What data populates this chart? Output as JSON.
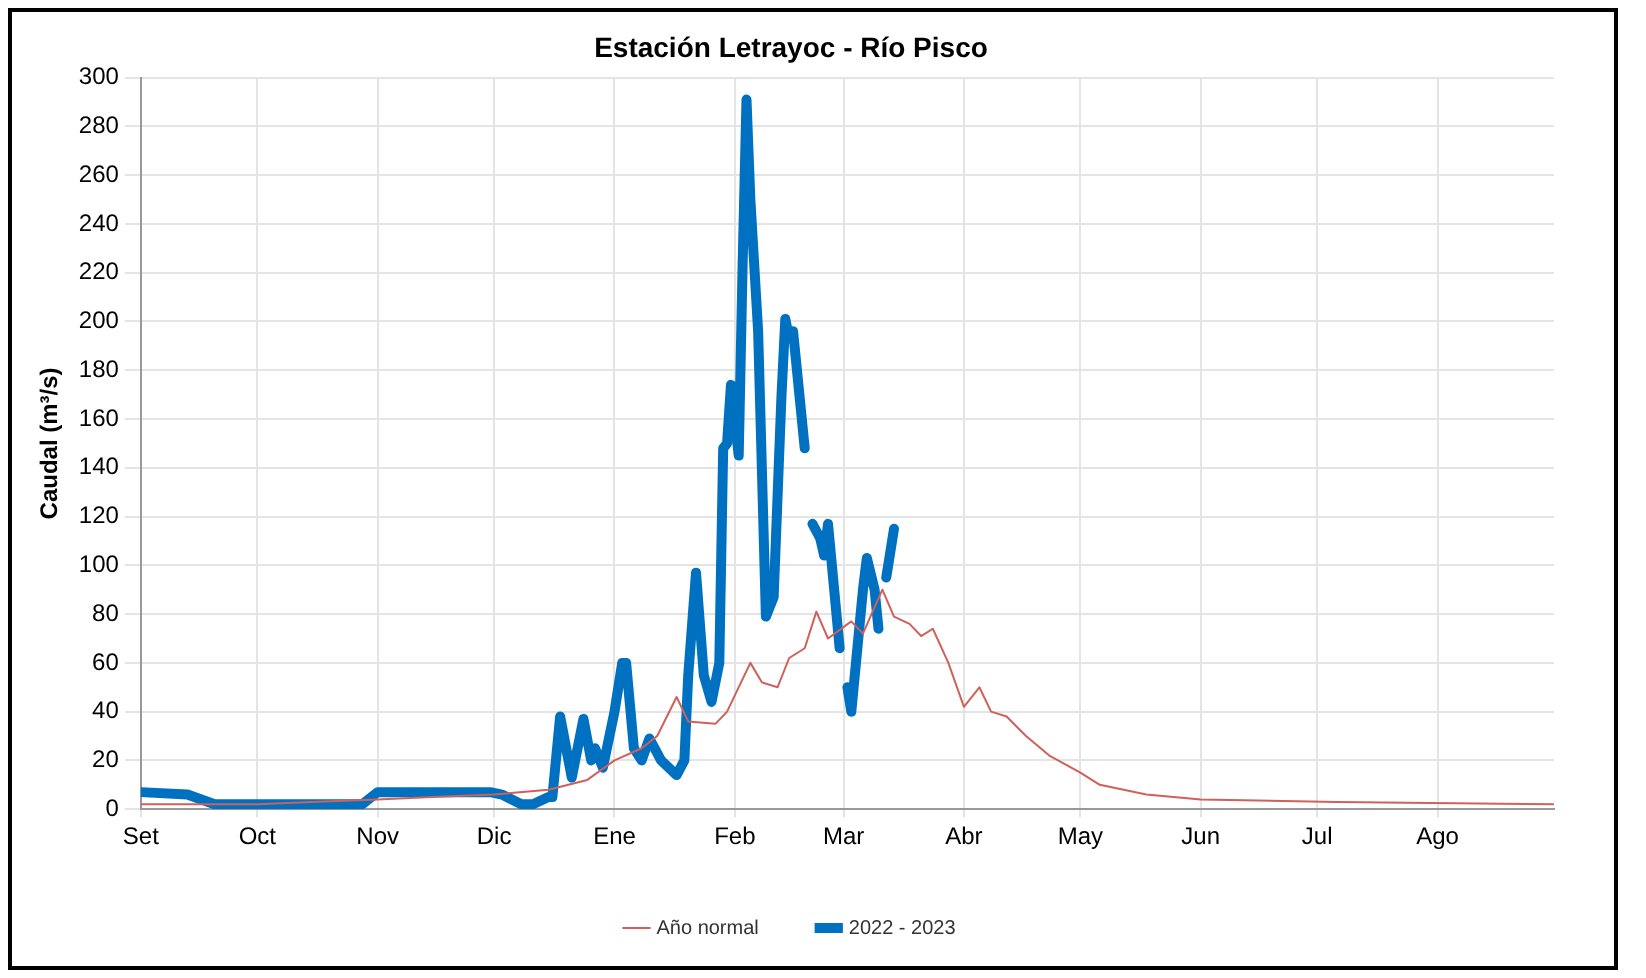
{
  "chart_data": {
    "type": "line",
    "title": "Estación Letrayoc - Río Pisco",
    "ylabel": "Caudal (m³/s)",
    "xlim": [
      "2022-09-01",
      "2023-08-31"
    ],
    "xticks": [
      {
        "value": "2022-09-01",
        "label": "Set"
      },
      {
        "value": "2022-10-01",
        "label": "Oct"
      },
      {
        "value": "2022-11-01",
        "label": "Nov"
      },
      {
        "value": "2022-12-01",
        "label": "Dic"
      },
      {
        "value": "2023-01-01",
        "label": "Ene"
      },
      {
        "value": "2023-02-01",
        "label": "Feb"
      },
      {
        "value": "2023-03-01",
        "label": "Mar"
      },
      {
        "value": "2023-04-01",
        "label": "Abr"
      },
      {
        "value": "2023-05-01",
        "label": "May"
      },
      {
        "value": "2023-06-01",
        "label": "Jun"
      },
      {
        "value": "2023-07-01",
        "label": "Jul"
      },
      {
        "value": "2023-08-01",
        "label": "Ago"
      }
    ],
    "ylim": [
      0,
      300
    ],
    "yticks": [
      0,
      20,
      40,
      60,
      80,
      100,
      120,
      140,
      160,
      180,
      200,
      220,
      240,
      260,
      280,
      300
    ],
    "grid": true,
    "legend": "bottom",
    "marker": "none",
    "line_style": "solid",
    "series": [
      {
        "name": "Año normal",
        "color": "#d0605a",
        "x": [
          "2022-09-01",
          "2022-09-15",
          "2022-10-01",
          "2022-10-15",
          "2022-11-01",
          "2022-11-15",
          "2022-12-01",
          "2022-12-15",
          "2022-12-25",
          "2023-01-01",
          "2023-01-08",
          "2023-01-12",
          "2023-01-17",
          "2023-01-20",
          "2023-01-27",
          "2023-01-30",
          "2023-02-05",
          "2023-02-08",
          "2023-02-12",
          "2023-02-15",
          "2023-02-19",
          "2023-02-22",
          "2023-02-25",
          "2023-03-03",
          "2023-03-06",
          "2023-03-11",
          "2023-03-14",
          "2023-03-18",
          "2023-03-21",
          "2023-03-24",
          "2023-03-28",
          "2023-04-01",
          "2023-04-05",
          "2023-04-08",
          "2023-04-12",
          "2023-04-17",
          "2023-04-23",
          "2023-05-01",
          "2023-05-06",
          "2023-05-18",
          "2023-06-01",
          "2023-07-06",
          "2023-08-31"
        ],
        "values": [
          2,
          2,
          2,
          3,
          4,
          5,
          6,
          8,
          12,
          20,
          25,
          30,
          46,
          36,
          35,
          40,
          60,
          52,
          50,
          62,
          66,
          81,
          70,
          77,
          72,
          90,
          79,
          76,
          71,
          74,
          60,
          42,
          50,
          40,
          38,
          30,
          22,
          15,
          10,
          6,
          4,
          3,
          2
        ]
      },
      {
        "name": "2022 - 2023",
        "color": "#0070c0",
        "x": [
          "2022-09-01",
          "2022-09-13",
          "2022-09-20",
          "2022-10-28",
          "2022-11-01",
          "2022-11-30",
          "2022-12-03",
          "2022-12-08",
          "2022-12-11",
          "2022-12-15",
          "2022-12-16",
          "2022-12-18",
          "2022-12-21",
          "2022-12-24",
          "2022-12-26",
          "2022-12-27",
          "2022-12-29",
          "2023-01-01",
          "2023-01-03",
          "2023-01-04",
          "2023-01-06",
          "2023-01-08",
          "2023-01-10",
          "2023-01-13",
          "2023-01-17",
          "2023-01-19",
          "2023-01-20",
          "2023-01-22",
          "2023-01-24",
          "2023-01-26",
          "2023-01-28",
          "2023-01-29",
          "2023-01-30",
          "2023-01-31",
          "2023-02-02",
          "2023-02-03",
          "2023-02-04",
          "2023-02-05",
          "2023-02-07",
          "2023-02-09",
          "2023-02-11",
          "2023-02-13",
          "2023-02-14",
          "2023-02-15",
          "2023-02-16",
          "2023-02-19",
          "2023-02-20",
          "2023-02-21",
          "2023-02-23",
          "2023-02-24",
          "2023-02-25",
          "2023-02-28",
          "2023-03-01",
          "2023-03-02",
          "2023-03-03",
          "2023-03-06",
          "2023-03-07",
          "2023-03-09",
          "2023-03-10",
          "2023-03-11",
          "2023-03-12",
          "2023-03-14"
        ],
        "values": [
          7,
          6,
          2,
          2,
          7,
          7,
          6,
          2,
          2,
          5,
          5,
          38,
          13,
          37,
          20,
          25,
          17,
          40,
          60,
          60,
          25,
          20,
          29,
          20,
          14,
          20,
          55,
          97,
          55,
          44,
          60,
          148,
          150,
          174,
          145,
          223,
          291,
          250,
          196,
          79,
          87,
          169,
          201,
          193,
          196,
          148,
          null,
          117,
          111,
          104,
          117,
          66,
          null,
          50,
          40,
          90,
          103,
          90,
          74,
          null,
          95,
          115
        ]
      }
    ]
  }
}
